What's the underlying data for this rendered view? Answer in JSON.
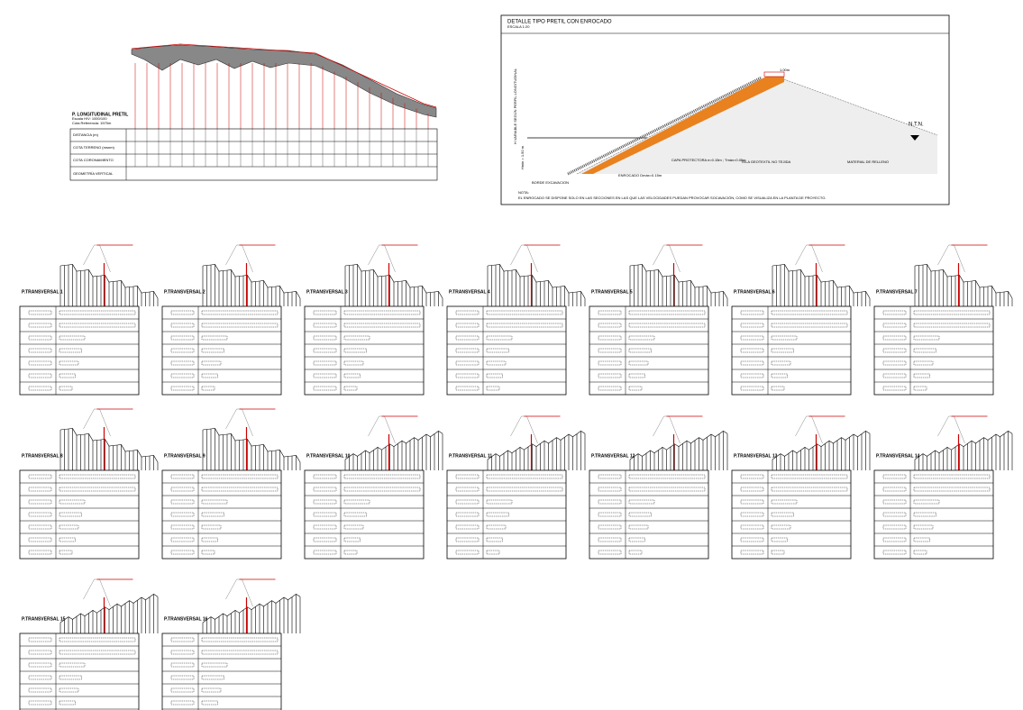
{
  "longitudinal": {
    "title": "P. LONGITUDINAL PRETIL",
    "scale": "Escala H/V: 1000/100",
    "reference": "Cota Referencia: 1570m",
    "rows": [
      "DISTANCIA (m)",
      "COTA TERRENO (msnm)",
      "COTA CORONAMIENTO",
      "GEOMETRÍA VERTICAL"
    ]
  },
  "detail": {
    "title": "DETALLE TIPO PRETIL CON ENROCADO",
    "scale": "ESCALA 1:20",
    "width": "1.00m",
    "ntn": "N.T.N.",
    "height_label": "H VARIABLE SEGÚN PERFIL LONGITUDINAL",
    "hmin": "Hmin = 1.50 m",
    "layer": "CAPA PROTECTORA e=0.15m ; Tmáx=0.05m",
    "geotextile": "TELA GEOTEXTIL NO TEJIDA",
    "fill": "MATERIAL DE RELLENO",
    "riprap": "ENROCADO Dmáx=0.15m",
    "edge": "BORDE EXCAVACION",
    "note_title": "NOTA:",
    "note": "EL ENROCADO SE DISPONE SOLO EN LAS SECCIONES EN LAS QUE LAS VELOCIDADES PUEDAN PROVOCAR SOCAVACIÓN, COMO SE VISUALIZA EN LA PLANTA DE PROYECTO."
  },
  "sections": [
    "P.TRANSVERSAL 1",
    "P.TRANSVERSAL 2",
    "P.TRANSVERSAL 3",
    "P.TRANSVERSAL 4",
    "P.TRANSVERSAL 5",
    "P.TRANSVERSAL 6",
    "P.TRANSVERSAL 7",
    "P.TRANSVERSAL 8",
    "P.TRANSVERSAL 9",
    "P.TRANSVERSAL 10",
    "P.TRANSVERSAL 11",
    "P.TRANSVERSAL 12",
    "P.TRANSVERSAL 13",
    "P.TRANSVERSAL 14",
    "P.TRANSVERSAL 15",
    "P.TRANSVERSAL 16"
  ]
}
